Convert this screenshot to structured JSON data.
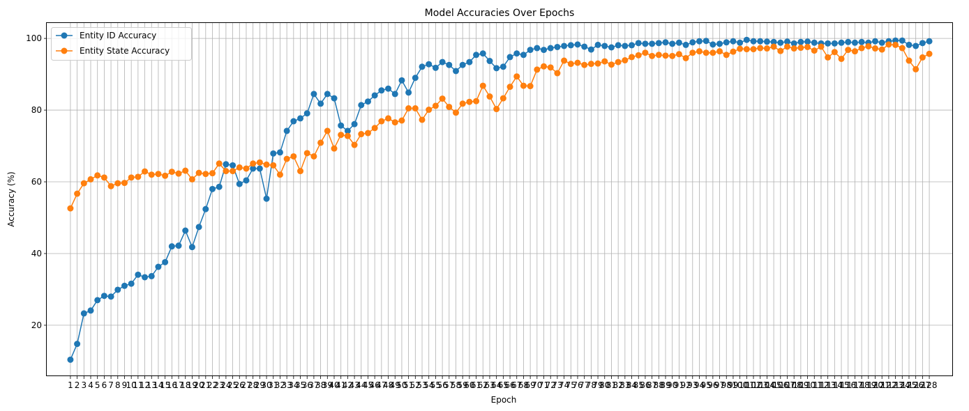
{
  "chart_data": {
    "type": "line",
    "title": "Model Accuracies Over Epochs",
    "xlabel": "Epoch",
    "ylabel": "Accuracy (%)",
    "x": [
      1,
      2,
      3,
      4,
      5,
      6,
      7,
      8,
      9,
      10,
      11,
      12,
      13,
      14,
      15,
      16,
      17,
      18,
      19,
      20,
      21,
      22,
      23,
      24,
      25,
      26,
      27,
      28,
      29,
      30,
      31,
      32,
      33,
      34,
      35,
      36,
      37,
      38,
      39,
      40,
      41,
      42,
      43,
      44,
      45,
      46,
      47,
      48,
      49,
      50,
      51,
      52,
      53,
      54,
      55,
      56,
      57,
      58,
      59,
      60,
      61,
      62,
      63,
      64,
      65,
      66,
      67,
      68,
      69,
      70,
      71,
      72,
      73,
      74,
      75,
      76,
      77,
      78,
      79,
      80,
      81,
      82,
      83,
      84,
      85,
      86,
      87,
      88,
      89,
      90,
      91,
      92,
      93,
      94,
      95,
      96,
      97,
      98,
      99,
      100,
      101,
      102,
      103,
      104,
      105,
      106,
      107,
      108,
      109,
      110,
      111,
      112,
      113,
      114,
      115,
      116,
      117,
      118,
      119,
      120,
      121,
      122,
      123,
      124,
      125,
      126,
      127,
      128
    ],
    "xlim": [
      -2.5,
      131.5
    ],
    "ylim": [
      5.8,
      104.3
    ],
    "yticks": [
      20,
      40,
      60,
      80,
      100
    ],
    "grid": true,
    "legend_position": "upper-left",
    "series": [
      {
        "name": "Entity ID Accuracy",
        "color": "#1f77b4",
        "values": [
          10.4,
          14.8,
          23.3,
          24.1,
          27.0,
          28.2,
          28.0,
          29.9,
          31.0,
          31.6,
          34.1,
          33.4,
          33.7,
          36.3,
          37.6,
          42.0,
          42.2,
          46.4,
          41.8,
          47.4,
          52.4,
          58.0,
          58.6,
          64.9,
          64.6,
          59.4,
          60.4,
          63.7,
          63.7,
          55.3,
          67.9,
          68.2,
          74.2,
          76.9,
          77.7,
          79.1,
          84.5,
          81.8,
          84.5,
          83.3,
          75.7,
          74.2,
          76.1,
          81.4,
          82.4,
          84.1,
          85.5,
          86.0,
          84.5,
          88.3,
          84.9,
          89.0,
          92.1,
          92.8,
          91.8,
          93.4,
          92.6,
          90.9,
          92.6,
          93.4,
          95.4,
          95.8,
          93.7,
          91.7,
          92.1,
          94.8,
          95.8,
          95.4,
          96.8,
          97.3,
          96.8,
          97.3,
          97.6,
          97.9,
          98.1,
          98.3,
          97.7,
          96.9,
          98.2,
          97.9,
          97.5,
          98.1,
          97.9,
          98.1,
          98.7,
          98.5,
          98.5,
          98.7,
          98.9,
          98.5,
          98.8,
          98.2,
          98.9,
          99.2,
          99.3,
          98.3,
          98.5,
          98.9,
          99.2,
          98.8,
          99.6,
          99.2,
          99.2,
          99.1,
          99.0,
          98.8,
          99.1,
          98.6,
          99.0,
          99.1,
          98.8,
          98.6,
          98.6,
          98.6,
          98.8,
          99.0,
          98.8,
          99.0,
          98.8,
          99.2,
          98.8,
          99.2,
          99.4,
          99.4,
          98.2,
          97.9,
          98.7,
          99.2
        ]
      },
      {
        "name": "Entity State Accuracy",
        "color": "#ff7f0e",
        "values": [
          52.6,
          56.7,
          59.6,
          60.7,
          61.8,
          61.2,
          58.8,
          59.6,
          59.7,
          61.2,
          61.4,
          62.9,
          62.0,
          62.2,
          61.7,
          62.8,
          62.3,
          63.1,
          60.7,
          62.5,
          62.2,
          62.4,
          65.1,
          63.0,
          63.0,
          64.0,
          63.7,
          65.1,
          65.4,
          64.8,
          64.6,
          62.0,
          66.4,
          67.1,
          63.0,
          68.0,
          67.1,
          70.9,
          74.2,
          69.3,
          73.1,
          72.8,
          70.3,
          73.3,
          73.6,
          75.0,
          76.9,
          77.7,
          76.6,
          77.1,
          80.5,
          80.5,
          77.3,
          80.1,
          81.2,
          83.2,
          80.9,
          79.3,
          81.8,
          82.3,
          82.5,
          86.8,
          83.8,
          80.3,
          83.3,
          86.5,
          89.4,
          86.8,
          86.7,
          91.3,
          92.2,
          91.9,
          90.3,
          93.8,
          92.9,
          93.2,
          92.6,
          92.9,
          93.0,
          93.6,
          92.7,
          93.4,
          93.9,
          94.8,
          95.3,
          96.0,
          95.1,
          95.4,
          95.2,
          95.1,
          95.6,
          94.5,
          96.0,
          96.4,
          96.0,
          96.0,
          96.4,
          95.4,
          96.3,
          97.1,
          97.0,
          97.0,
          97.3,
          97.2,
          97.7,
          96.5,
          97.7,
          97.2,
          97.4,
          97.6,
          96.6,
          97.7,
          94.7,
          96.2,
          94.3,
          96.8,
          96.4,
          97.3,
          97.8,
          97.2,
          96.9,
          98.3,
          98.2,
          97.3,
          93.8,
          91.4,
          94.7,
          95.7
        ]
      }
    ]
  }
}
